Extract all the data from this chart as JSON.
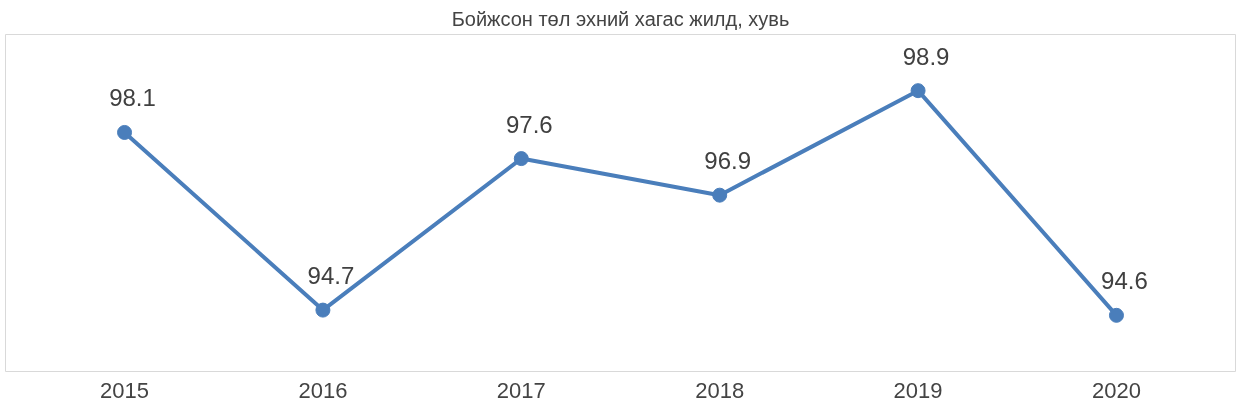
{
  "chart_data": {
    "type": "line",
    "title": "Бойжсон төл эхний хагас жилд, хувь",
    "categories": [
      "2015",
      "2016",
      "2017",
      "2018",
      "2019",
      "2020"
    ],
    "series": [
      {
        "color": "#4a7ebb",
        "values": [
          98.1,
          94.7,
          97.6,
          96.9,
          98.9,
          94.6
        ]
      }
    ],
    "data_labels": true,
    "marker": "circle",
    "tick_labels": "x"
  }
}
